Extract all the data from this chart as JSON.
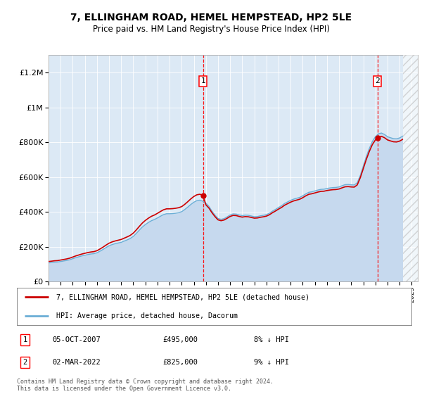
{
  "title": "7, ELLINGHAM ROAD, HEMEL HEMPSTEAD, HP2 5LE",
  "subtitle": "Price paid vs. HM Land Registry's House Price Index (HPI)",
  "ytick_values": [
    0,
    200000,
    400000,
    600000,
    800000,
    1000000,
    1200000
  ],
  "ylim": [
    0,
    1300000
  ],
  "xlim_start": 1995.0,
  "xlim_end": 2025.5,
  "plot_bg": "#dce9f5",
  "hpi_color": "#6baed6",
  "hpi_fill_color": "#c6d9ee",
  "price_color": "#cc0000",
  "sale1_x": 2007.76,
  "sale1_y": 495000,
  "sale2_x": 2022.17,
  "sale2_y": 825000,
  "sale1_label": "1",
  "sale2_label": "2",
  "legend_house": "7, ELLINGHAM ROAD, HEMEL HEMPSTEAD, HP2 5LE (detached house)",
  "legend_hpi": "HPI: Average price, detached house, Dacorum",
  "note1_label": "1",
  "note1_date": "05-OCT-2007",
  "note1_price": "£495,000",
  "note1_pct": "8% ↓ HPI",
  "note2_label": "2",
  "note2_date": "02-MAR-2022",
  "note2_price": "£825,000",
  "note2_pct": "9% ↓ HPI",
  "copyright": "Contains HM Land Registry data © Crown copyright and database right 2024.\nThis data is licensed under the Open Government Licence v3.0.",
  "hpi_years": [
    1995.0,
    1995.25,
    1995.5,
    1995.75,
    1996.0,
    1996.25,
    1996.5,
    1996.75,
    1997.0,
    1997.25,
    1997.5,
    1997.75,
    1998.0,
    1998.25,
    1998.5,
    1998.75,
    1999.0,
    1999.25,
    1999.5,
    1999.75,
    2000.0,
    2000.25,
    2000.5,
    2000.75,
    2001.0,
    2001.25,
    2001.5,
    2001.75,
    2002.0,
    2002.25,
    2002.5,
    2002.75,
    2003.0,
    2003.25,
    2003.5,
    2003.75,
    2004.0,
    2004.25,
    2004.5,
    2004.75,
    2005.0,
    2005.25,
    2005.5,
    2005.75,
    2006.0,
    2006.25,
    2006.5,
    2006.75,
    2007.0,
    2007.25,
    2007.5,
    2007.75,
    2008.0,
    2008.25,
    2008.5,
    2008.75,
    2009.0,
    2009.25,
    2009.5,
    2009.75,
    2010.0,
    2010.25,
    2010.5,
    2010.75,
    2011.0,
    2011.25,
    2011.5,
    2011.75,
    2012.0,
    2012.25,
    2012.5,
    2012.75,
    2013.0,
    2013.25,
    2013.5,
    2013.75,
    2014.0,
    2014.25,
    2014.5,
    2014.75,
    2015.0,
    2015.25,
    2015.5,
    2015.75,
    2016.0,
    2016.25,
    2016.5,
    2016.75,
    2017.0,
    2017.25,
    2017.5,
    2017.75,
    2018.0,
    2018.25,
    2018.5,
    2018.75,
    2019.0,
    2019.25,
    2019.5,
    2019.75,
    2020.0,
    2020.25,
    2020.5,
    2020.75,
    2021.0,
    2021.25,
    2021.5,
    2021.75,
    2022.0,
    2022.25,
    2022.5,
    2022.75,
    2023.0,
    2023.25,
    2023.5,
    2023.75,
    2024.0,
    2024.25
  ],
  "hpi_values": [
    108000,
    110000,
    112000,
    113000,
    116000,
    119000,
    122000,
    126000,
    132000,
    138000,
    143000,
    148000,
    152000,
    156000,
    159000,
    161000,
    166000,
    175000,
    185000,
    196000,
    206000,
    213000,
    218000,
    222000,
    226000,
    233000,
    240000,
    248000,
    260000,
    277000,
    296000,
    314000,
    328000,
    340000,
    350000,
    357000,
    366000,
    376000,
    385000,
    390000,
    390000,
    391000,
    393000,
    396000,
    402000,
    414000,
    428000,
    443000,
    456000,
    465000,
    468000,
    462000,
    451000,
    432000,
    405000,
    382000,
    363000,
    358000,
    362000,
    372000,
    383000,
    389000,
    388000,
    383000,
    379000,
    382000,
    381000,
    377000,
    373000,
    374000,
    378000,
    381000,
    385000,
    393000,
    405000,
    415000,
    426000,
    436000,
    449000,
    458000,
    467000,
    474000,
    479000,
    484000,
    493000,
    504000,
    513000,
    516000,
    521000,
    526000,
    530000,
    531000,
    535000,
    538000,
    540000,
    541000,
    544000,
    551000,
    557000,
    558000,
    556000,
    555000,
    568000,
    610000,
    664000,
    718000,
    765000,
    805000,
    832000,
    849000,
    853000,
    845000,
    832000,
    826000,
    821000,
    820000,
    825000,
    835000
  ],
  "xtick_years": [
    1995,
    1996,
    1997,
    1998,
    1999,
    2000,
    2001,
    2002,
    2003,
    2004,
    2005,
    2006,
    2007,
    2008,
    2009,
    2010,
    2011,
    2012,
    2013,
    2014,
    2015,
    2016,
    2017,
    2018,
    2019,
    2020,
    2021,
    2022,
    2023,
    2024,
    2025
  ],
  "hatch_start": 2024.3
}
